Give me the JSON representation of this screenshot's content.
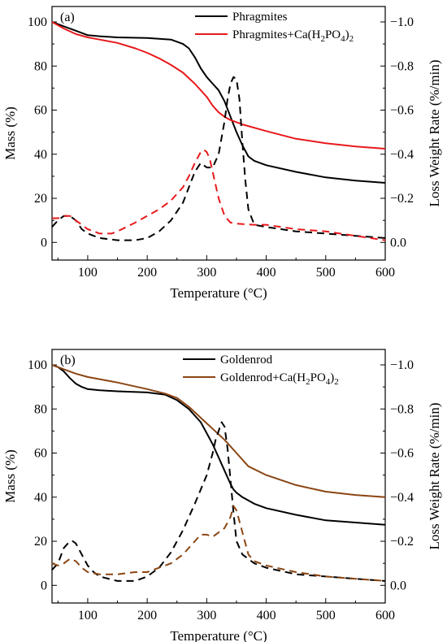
{
  "chart_data": [
    {
      "type": "line",
      "panel_label": "(a)",
      "xlabel": "Temperature (°C)",
      "ylabel": "Mass (%)",
      "y2label": "Loss Weight Rate (%/min)",
      "xlim": [
        40,
        600
      ],
      "ylim": [
        -8,
        107
      ],
      "y2lim": [
        0.08,
        -1.07
      ],
      "y2_inverted": true,
      "x_ticks": [
        "100",
        "200",
        "300",
        "400",
        "500",
        "600"
      ],
      "y_ticks": [
        "0",
        "20",
        "40",
        "60",
        "80",
        "100"
      ],
      "y2_ticks": [
        "0.0",
        "−0.2",
        "−0.4",
        "−0.6",
        "−0.8",
        "−1.0"
      ],
      "legend_position": "top-right",
      "legend": [
        "Phragmites",
        "Phragmites+Ca(H2PO4)2"
      ],
      "series": [
        {
          "name": "Phragmites",
          "axis": "mass",
          "style": "solid",
          "color": "#000000",
          "x": [
            40,
            60,
            80,
            100,
            120,
            150,
            200,
            240,
            260,
            270,
            280,
            290,
            300,
            310,
            320,
            330,
            340,
            350,
            360,
            370,
            380,
            400,
            450,
            500,
            550,
            600
          ],
          "y": [
            100,
            98,
            96,
            94,
            93.5,
            93,
            92.7,
            92,
            90,
            88,
            84,
            79,
            75,
            72,
            69,
            64,
            57,
            50,
            44,
            39,
            37,
            35,
            32,
            29.5,
            28,
            27
          ]
        },
        {
          "name": "Phragmites+Ca(H2PO4)2",
          "axis": "mass",
          "style": "solid",
          "color": "#e8191c",
          "x": [
            40,
            60,
            80,
            100,
            120,
            150,
            180,
            200,
            220,
            240,
            260,
            280,
            300,
            310,
            320,
            330,
            340,
            360,
            400,
            450,
            500,
            550,
            600
          ],
          "y": [
            100,
            97,
            94.5,
            93,
            92,
            90.5,
            88,
            86,
            83.5,
            80.5,
            77,
            72,
            66,
            62,
            59,
            57,
            55.5,
            53.5,
            50.5,
            47,
            45,
            43.5,
            42.5
          ]
        },
        {
          "axis": "rate",
          "style": "dashed",
          "color": "#000000",
          "x": [
            40,
            50,
            60,
            70,
            80,
            90,
            100,
            120,
            150,
            180,
            200,
            220,
            240,
            260,
            270,
            280,
            290,
            300,
            310,
            320,
            330,
            335,
            340,
            345,
            350,
            355,
            360,
            365,
            370,
            380,
            400,
            450,
            500,
            550,
            600
          ],
          "y": [
            -0.07,
            -0.1,
            -0.12,
            -0.12,
            -0.1,
            -0.06,
            -0.04,
            -0.02,
            -0.01,
            -0.01,
            -0.02,
            -0.05,
            -0.1,
            -0.18,
            -0.25,
            -0.32,
            -0.36,
            -0.34,
            -0.34,
            -0.4,
            -0.55,
            -0.65,
            -0.72,
            -0.75,
            -0.74,
            -0.65,
            -0.45,
            -0.28,
            -0.15,
            -0.08,
            -0.07,
            -0.05,
            -0.04,
            -0.03,
            -0.02
          ]
        },
        {
          "axis": "rate",
          "style": "dashed",
          "color": "#e8191c",
          "x": [
            40,
            50,
            60,
            70,
            80,
            90,
            100,
            110,
            120,
            130,
            140,
            150,
            180,
            200,
            220,
            240,
            260,
            270,
            280,
            290,
            295,
            300,
            305,
            310,
            320,
            330,
            340,
            350,
            380,
            400,
            450,
            500,
            550,
            600
          ],
          "y": [
            -0.11,
            -0.11,
            -0.12,
            -0.12,
            -0.1,
            -0.08,
            -0.06,
            -0.05,
            -0.04,
            -0.04,
            -0.04,
            -0.05,
            -0.09,
            -0.12,
            -0.15,
            -0.19,
            -0.25,
            -0.3,
            -0.36,
            -0.41,
            -0.42,
            -0.41,
            -0.38,
            -0.32,
            -0.2,
            -0.12,
            -0.09,
            -0.085,
            -0.08,
            -0.08,
            -0.06,
            -0.05,
            -0.03,
            -0.01
          ]
        }
      ]
    },
    {
      "type": "line",
      "panel_label": "(b)",
      "xlabel": "Temperature (°C)",
      "ylabel": "Mass (%)",
      "y2label": "Loss Weight Rate (%/min)",
      "xlim": [
        40,
        600
      ],
      "ylim": [
        -8,
        107
      ],
      "y2lim": [
        0.08,
        -1.07
      ],
      "y2_inverted": true,
      "x_ticks": [
        "100",
        "200",
        "300",
        "400",
        "500",
        "600"
      ],
      "y_ticks": [
        "0",
        "20",
        "40",
        "60",
        "80",
        "100"
      ],
      "y2_ticks": [
        "0.0",
        "−0.2",
        "−0.4",
        "−0.6",
        "−0.8",
        "−1.0"
      ],
      "legend_position": "top-right",
      "legend": [
        "Goldenrod",
        "Goldenrod+Ca(H2PO4)2"
      ],
      "series": [
        {
          "name": "Goldenrod",
          "axis": "mass",
          "style": "solid",
          "color": "#000000",
          "x": [
            40,
            50,
            60,
            70,
            80,
            90,
            100,
            120,
            150,
            200,
            230,
            250,
            270,
            290,
            300,
            310,
            320,
            330,
            340,
            345,
            350,
            360,
            380,
            400,
            450,
            500,
            550,
            600
          ],
          "y": [
            100,
            99,
            97,
            94,
            91.5,
            90,
            89,
            88.5,
            88,
            87.5,
            86.5,
            84,
            80,
            74,
            69,
            64,
            58,
            52,
            46,
            43.5,
            42,
            40,
            37,
            35,
            32,
            29.5,
            28.5,
            27.5
          ]
        },
        {
          "name": "Goldenrod+Ca(H2PO4)2",
          "axis": "mass",
          "style": "solid",
          "color": "#8b4513",
          "x": [
            40,
            60,
            80,
            100,
            120,
            150,
            200,
            230,
            250,
            270,
            290,
            310,
            330,
            350,
            370,
            400,
            450,
            500,
            550,
            600
          ],
          "y": [
            100,
            98,
            96,
            94.5,
            93.5,
            92,
            89,
            87,
            85,
            81,
            76,
            71,
            66,
            60,
            54,
            50,
            45.5,
            42.5,
            41,
            40
          ]
        },
        {
          "axis": "rate",
          "style": "dashed",
          "color": "#000000",
          "x": [
            40,
            50,
            60,
            70,
            75,
            80,
            90,
            100,
            110,
            120,
            150,
            180,
            200,
            220,
            240,
            260,
            280,
            300,
            310,
            315,
            320,
            325,
            330,
            335,
            340,
            345,
            350,
            360,
            380,
            400,
            450,
            500,
            550,
            600
          ],
          "y": [
            -0.07,
            -0.1,
            -0.17,
            -0.2,
            -0.2,
            -0.19,
            -0.14,
            -0.09,
            -0.06,
            -0.04,
            -0.02,
            -0.02,
            -0.04,
            -0.08,
            -0.15,
            -0.25,
            -0.37,
            -0.5,
            -0.6,
            -0.66,
            -0.7,
            -0.74,
            -0.72,
            -0.62,
            -0.48,
            -0.33,
            -0.2,
            -0.14,
            -0.1,
            -0.08,
            -0.05,
            -0.04,
            -0.03,
            -0.02
          ]
        },
        {
          "axis": "rate",
          "style": "dashed",
          "color": "#8b4513",
          "x": [
            40,
            50,
            60,
            70,
            80,
            90,
            100,
            120,
            150,
            180,
            200,
            220,
            240,
            260,
            280,
            290,
            300,
            310,
            320,
            330,
            340,
            345,
            350,
            360,
            370,
            380,
            400,
            450,
            500,
            550,
            600
          ],
          "y": [
            -0.1,
            -0.09,
            -0.1,
            -0.12,
            -0.11,
            -0.08,
            -0.06,
            -0.05,
            -0.05,
            -0.06,
            -0.06,
            -0.08,
            -0.1,
            -0.14,
            -0.2,
            -0.23,
            -0.23,
            -0.22,
            -0.24,
            -0.26,
            -0.31,
            -0.36,
            -0.34,
            -0.24,
            -0.14,
            -0.11,
            -0.09,
            -0.06,
            -0.04,
            -0.03,
            -0.02
          ]
        }
      ]
    }
  ]
}
